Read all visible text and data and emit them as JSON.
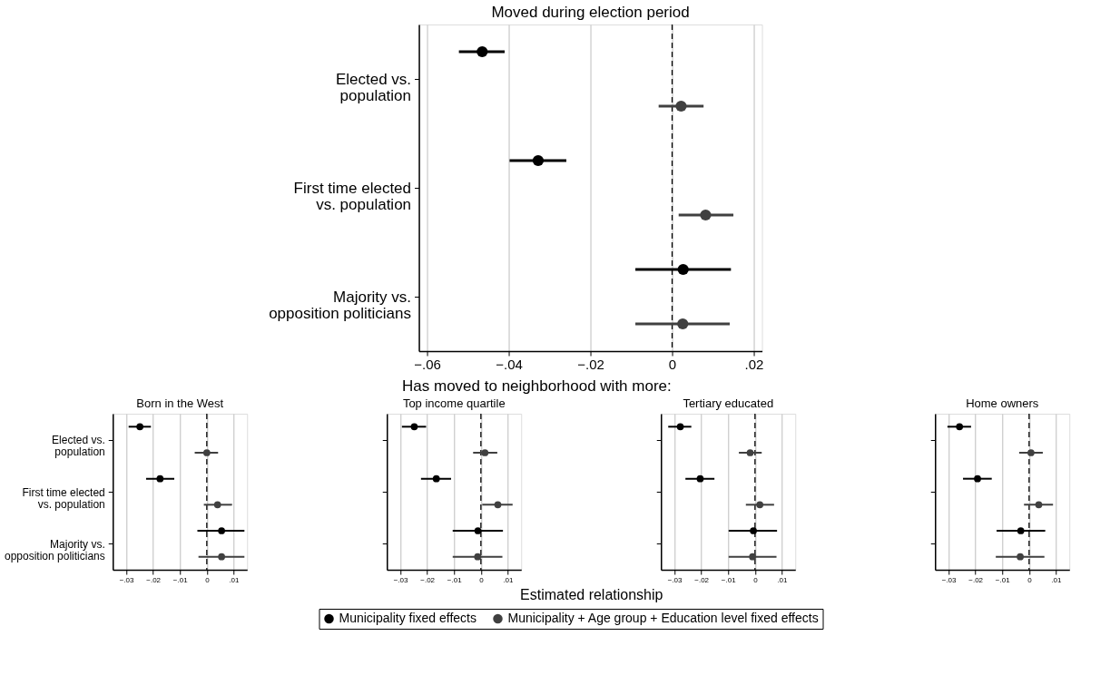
{
  "chart_data": [
    {
      "type": "scatter",
      "orientation": "horizontal",
      "title": "Moved during election period",
      "categories": [
        "Elected vs. population",
        "First time elected vs. population",
        "Majority vs. opposition politicians"
      ],
      "series": [
        {
          "name": "Municipality fixed effects",
          "color": "#000000",
          "values": [
            -0.0465,
            -0.0328,
            0.0027
          ],
          "errors": [
            [
              -0.0522,
              -0.041
            ],
            [
              -0.0398,
              -0.0259
            ],
            [
              -0.009,
              0.0144
            ]
          ]
        },
        {
          "name": "Municipality + Age group + Education level fixed effects",
          "color": "#404040",
          "values": [
            0.0022,
            0.0082,
            0.0026
          ],
          "errors": [
            [
              -0.0033,
              0.0077
            ],
            [
              0.0016,
              0.015
            ],
            [
              -0.009,
              0.0141
            ]
          ]
        }
      ],
      "xlim": [
        -0.062,
        0.022
      ],
      "xticks": [
        {
          "value": -0.06,
          "label": "−.06"
        },
        {
          "value": -0.04,
          "label": "−.04"
        },
        {
          "value": -0.02,
          "label": "−.02"
        },
        0,
        {
          "value": 0.02,
          "label": ".02"
        }
      ],
      "grid": "x",
      "marker": "circle",
      "legend": "bottom",
      "ref_lines": [
        {
          "axis": "x",
          "value": 0,
          "line_style": "dashed",
          "color": "#000000"
        }
      ]
    },
    {
      "type": "scatter",
      "orientation": "horizontal",
      "title": "Born in the West",
      "annotations": [
        "Has moved to neighborhood with more:"
      ],
      "categories": [
        "Elected vs. population",
        "First time elected vs. population",
        "Majority vs. opposition politicians"
      ],
      "series": [
        {
          "color": "#000000",
          "values": [
            -0.0249,
            -0.0174,
            0.0055
          ],
          "errors": [
            [
              -0.0291,
              -0.0208
            ],
            [
              -0.0226,
              -0.0121
            ],
            [
              -0.0035,
              0.014
            ]
          ]
        },
        {
          "color": "#404040",
          "values": [
            0.0,
            0.004,
            0.0055
          ],
          "errors": [
            [
              -0.0045,
              0.0042
            ],
            [
              -0.0011,
              0.0094
            ],
            [
              -0.0031,
              0.014
            ]
          ]
        }
      ],
      "xlim": [
        -0.035,
        0.015
      ],
      "xticks": [
        {
          "value": -0.03,
          "label": "−.03"
        },
        {
          "value": -0.02,
          "label": "−.02"
        },
        {
          "value": -0.01,
          "label": "−.01"
        },
        0,
        {
          "value": 0.01,
          "label": ".01"
        }
      ],
      "grid": "x",
      "marker": "circle",
      "ref_lines": [
        {
          "axis": "x",
          "value": 0,
          "line_style": "dashed",
          "color": "#000000"
        }
      ]
    },
    {
      "type": "scatter",
      "orientation": "horizontal",
      "title": "Top income quartile",
      "xlabel": "Estimated relationship",
      "categories": [
        null,
        null,
        null
      ],
      "series": [
        {
          "color": "#000000",
          "values": [
            -0.0248,
            -0.0166,
            -0.0011
          ],
          "errors": [
            [
              -0.0294,
              -0.0204
            ],
            [
              -0.0223,
              -0.0111
            ],
            [
              -0.0105,
              0.0082
            ]
          ]
        },
        {
          "color": "#404040",
          "values": [
            0.0015,
            0.0063,
            -0.0012
          ],
          "errors": [
            [
              -0.0029,
              0.0061
            ],
            [
              0.0005,
              0.0118
            ],
            [
              -0.0105,
              0.008
            ]
          ]
        }
      ],
      "xlim": [
        -0.035,
        0.015
      ],
      "xticks": [
        {
          "value": -0.03,
          "label": "−.03"
        },
        {
          "value": -0.02,
          "label": "−.02"
        },
        {
          "value": -0.01,
          "label": "−.01"
        },
        0,
        {
          "value": 0.01,
          "label": ".01"
        }
      ],
      "grid": "x",
      "marker": "circle",
      "tick_labels": "x",
      "ref_lines": [
        {
          "axis": "x",
          "value": 0,
          "line_style": "dashed",
          "color": "#000000"
        }
      ]
    },
    {
      "type": "scatter",
      "orientation": "horizontal",
      "title": "Tertiary educated",
      "categories": [
        null,
        null,
        null
      ],
      "series": [
        {
          "color": "#000000",
          "values": [
            -0.0278,
            -0.0204,
            -0.0006
          ],
          "errors": [
            [
              -0.0323,
              -0.0237
            ],
            [
              -0.0259,
              -0.0151
            ],
            [
              -0.0098,
              0.0082
            ]
          ]
        },
        {
          "color": "#404040",
          "values": [
            -0.0018,
            0.0018,
            -0.0009
          ],
          "errors": [
            [
              -0.006,
              0.0025
            ],
            [
              -0.0034,
              0.0071
            ],
            [
              -0.0098,
              0.008
            ]
          ]
        }
      ],
      "xlim": [
        -0.035,
        0.015
      ],
      "xticks": [
        {
          "value": -0.03,
          "label": "−.03"
        },
        {
          "value": -0.02,
          "label": "−.02"
        },
        {
          "value": -0.01,
          "label": "−.01"
        },
        0,
        {
          "value": 0.01,
          "label": ".01"
        }
      ],
      "grid": "x",
      "marker": "circle",
      "tick_labels": "x",
      "ref_lines": [
        {
          "axis": "x",
          "value": 0,
          "line_style": "dashed",
          "color": "#000000"
        }
      ]
    },
    {
      "type": "scatter",
      "orientation": "horizontal",
      "title": "Home owners",
      "categories": [
        null,
        null,
        null
      ],
      "series": [
        {
          "color": "#000000",
          "values": [
            -0.0259,
            -0.0192,
            -0.0031
          ],
          "errors": [
            [
              -0.0304,
              -0.0216
            ],
            [
              -0.0246,
              -0.0139
            ],
            [
              -0.0121,
              0.006
            ]
          ]
        },
        {
          "color": "#404040",
          "values": [
            0.0007,
            0.0036,
            -0.0033
          ],
          "errors": [
            [
              -0.0037,
              0.0051
            ],
            [
              -0.0019,
              0.0089
            ],
            [
              -0.0124,
              0.0057
            ]
          ]
        }
      ],
      "xlim": [
        -0.035,
        0.015
      ],
      "xticks": [
        {
          "value": -0.03,
          "label": "−.03"
        },
        {
          "value": -0.02,
          "label": "−.02"
        },
        {
          "value": -0.01,
          "label": "−.01"
        },
        0,
        {
          "value": 0.01,
          "label": ".01"
        }
      ],
      "grid": "x",
      "marker": "circle",
      "tick_labels": "x",
      "ref_lines": [
        {
          "axis": "x",
          "value": 0,
          "line_style": "dashed",
          "color": "#000000"
        }
      ]
    }
  ]
}
